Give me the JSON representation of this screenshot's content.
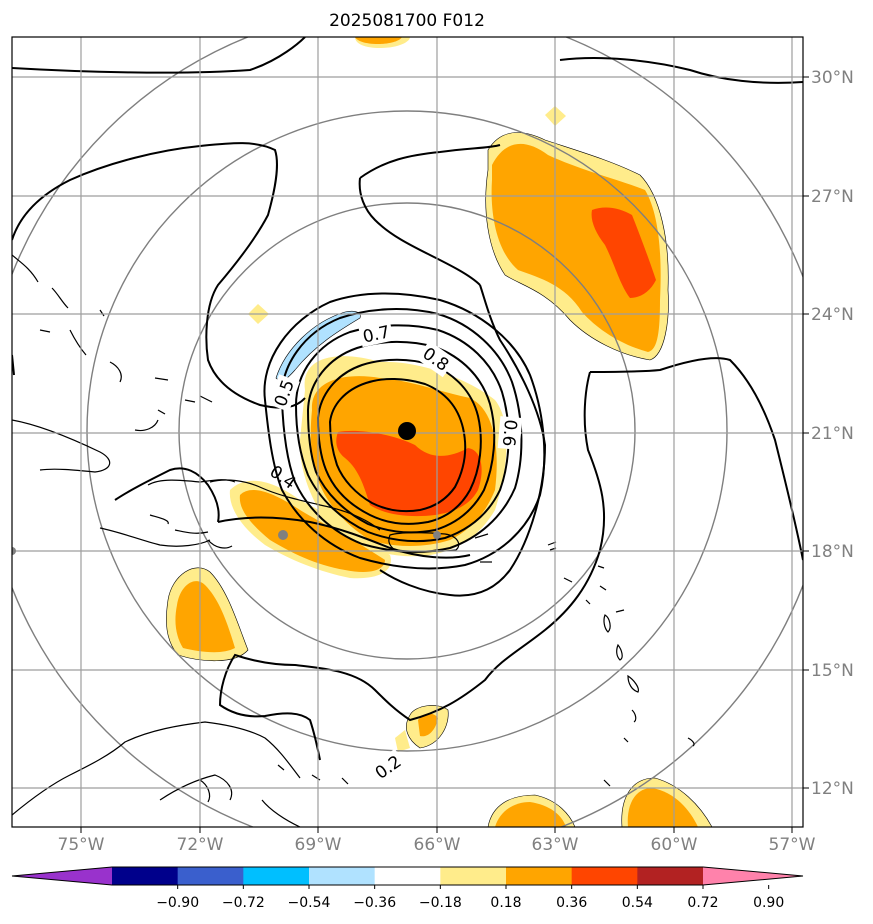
{
  "title": "2025081700 F012",
  "longitude_ticks": [
    "75°W",
    "72°W",
    "69°W",
    "66°W",
    "63°W",
    "60°W",
    "57°W"
  ],
  "latitude_ticks": [
    "30°N",
    "27°N",
    "24°N",
    "21°N",
    "18°N",
    "15°N",
    "12°N"
  ],
  "colorbar": {
    "extend": "both",
    "labels": [
      "−0.90",
      "−0.72",
      "−0.54",
      "−0.36",
      "−0.18",
      "0.18",
      "0.36",
      "0.54",
      "0.72",
      "0.90"
    ],
    "colors": [
      "#9932cc",
      "#00008b",
      "#3a5fcd",
      "#00bfff",
      "#b0e2ff",
      "#ffffff",
      "#ffec8b",
      "#ffa500",
      "#ff4500",
      "#b22222",
      "#ff82ab"
    ]
  },
  "contour_labels": [
    "0.7",
    "0.8",
    "0.5",
    "0.6",
    "0.4",
    "0.2"
  ],
  "storm_center": {
    "lon": -66.8,
    "lat": 21.0
  },
  "colors": {
    "shade_light": "#ffec8b",
    "shade_medium": "#ffa500",
    "shade_high": "#ff4500",
    "shade_negative": "#b0e2ff",
    "grid": "#9e9e9e",
    "range_rings": "#7f7f7f"
  }
}
